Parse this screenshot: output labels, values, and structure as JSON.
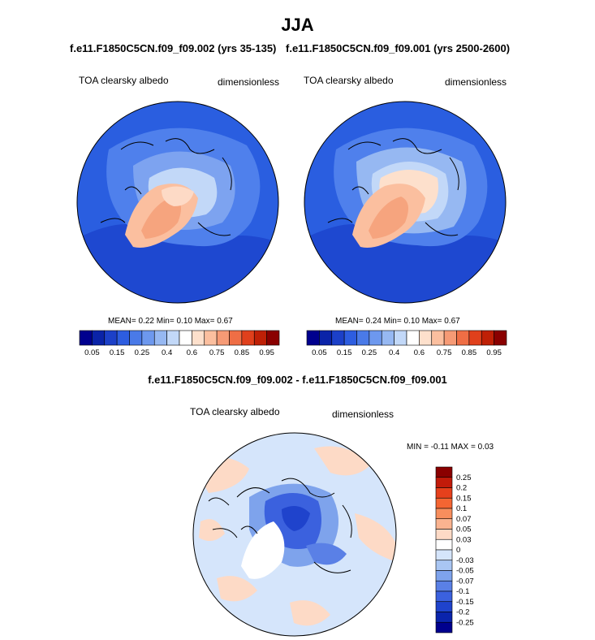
{
  "page": {
    "title": "JJA",
    "subtitle_left": "f.e11.F1850C5CN.f09_f09.002 (yrs 35-135)",
    "subtitle_right": "f.e11.F1850C5CN.f09_f09.001 (yrs 2500-2600)",
    "diff_title": "f.e11.F1850C5CN.f09_f09.002 - f.e11.F1850C5CN.f09_f09.001"
  },
  "panel_left": {
    "variable": "TOA clearsky albedo",
    "units": "dimensionless",
    "stats": "MEAN=   0.22  Min=   0.10  Max=    0.67"
  },
  "panel_right": {
    "variable": "TOA clearsky albedo",
    "units": "dimensionless",
    "stats": "MEAN=   0.24  Min=   0.10  Max=    0.67"
  },
  "panel_diff": {
    "variable": "TOA clearsky albedo",
    "units": "dimensionless",
    "stats": "MIN =  -0.11 MAX =   0.03"
  },
  "colorbar_abs": {
    "colors": [
      "#00008e",
      "#0a23a8",
      "#1c40c8",
      "#2d5de0",
      "#4a7ae8",
      "#6d98ee",
      "#96b8f2",
      "#c2d8f8",
      "#ffffff",
      "#fde0cc",
      "#fbbf9f",
      "#f69a75",
      "#ef6e45",
      "#e0401c",
      "#bf2006",
      "#8a0000"
    ],
    "tick_labels": [
      "0.05",
      "0.15",
      "0.25",
      "0.4",
      "0.6",
      "0.75",
      "0.85",
      "0.95"
    ],
    "tick_boundaries": [
      1,
      3,
      5,
      7,
      9,
      11,
      13,
      15
    ]
  },
  "colorbar_diff": {
    "colors": [
      "#8a0000",
      "#c21b0a",
      "#e6401c",
      "#f46532",
      "#f78e5d",
      "#fab390",
      "#fddac6",
      "#ffffff",
      "#d5e5fb",
      "#a9c6f3",
      "#7ea3ec",
      "#5a80e6",
      "#3b61de",
      "#1f43cc",
      "#0a24ac",
      "#00008e"
    ],
    "tick_labels": [
      "0.25",
      "0.2",
      "0.15",
      "0.1",
      "0.07",
      "0.05",
      "0.03",
      "0",
      "-0.03",
      "-0.05",
      "-0.07",
      "-0.1",
      "-0.15",
      "-0.2",
      "-0.25"
    ]
  }
}
